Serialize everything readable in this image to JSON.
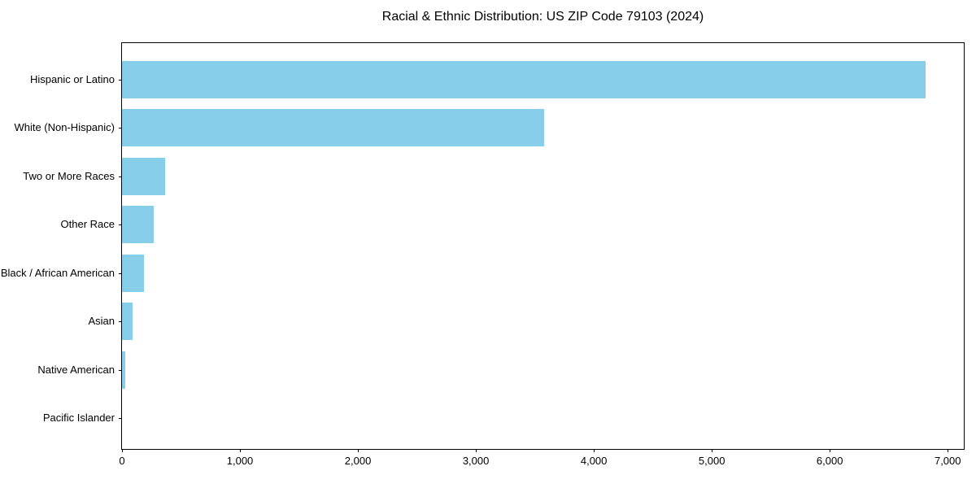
{
  "chart_data": {
    "type": "bar",
    "orientation": "horizontal",
    "title": "Racial & Ethnic Distribution: US ZIP Code 79103 (2024)",
    "categories": [
      "Hispanic or Latino",
      "White (Non-Hispanic)",
      "Two or More Races",
      "Other Race",
      "Black / African American",
      "Asian",
      "Native American",
      "Pacific Islander"
    ],
    "values": [
      6810,
      3580,
      365,
      270,
      185,
      90,
      28,
      0
    ],
    "xlabel": "",
    "ylabel": "",
    "xlim": [
      0,
      7150
    ],
    "x_ticks": [
      0,
      1000,
      2000,
      3000,
      4000,
      5000,
      6000,
      7000
    ],
    "x_tick_labels": [
      "0",
      "1,000",
      "2,000",
      "3,000",
      "4,000",
      "5,000",
      "6,000",
      "7,000"
    ],
    "bar_color": "#87CEEB",
    "axis_color": "#000000",
    "text_color": "#000000",
    "background_color": "#ffffff",
    "grid": false,
    "legend": null
  }
}
